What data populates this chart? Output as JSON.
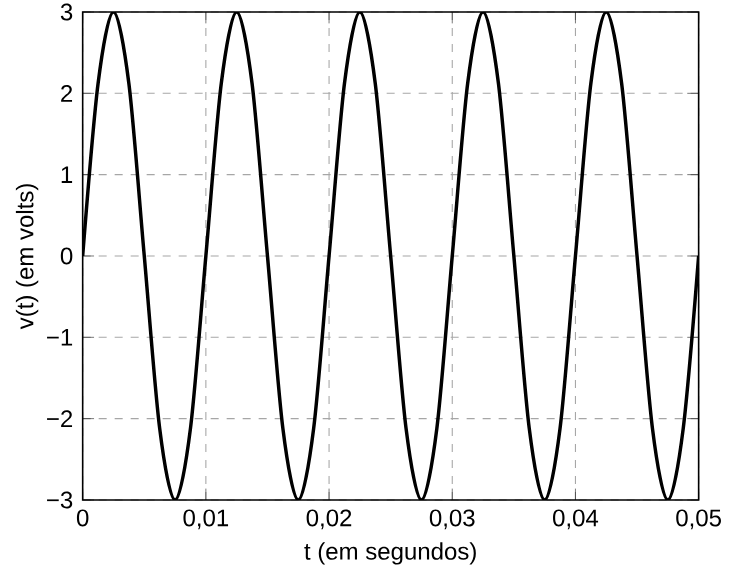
{
  "chart_data": {
    "type": "line",
    "xlabel": "t (em segundos)",
    "ylabel": "v(t) (em volts)",
    "x": [
      0,
      0.00125,
      0.0025,
      0.00375,
      0.005,
      0.00625,
      0.0075,
      0.00875,
      0.01,
      0.01125,
      0.0125,
      0.01375,
      0.015,
      0.01625,
      0.0175,
      0.01875,
      0.02,
      0.02125,
      0.0225,
      0.02375,
      0.025,
      0.02625,
      0.0275,
      0.02875,
      0.03,
      0.03125,
      0.0325,
      0.03375,
      0.035,
      0.03625,
      0.0375,
      0.03875,
      0.04,
      0.04125,
      0.0425,
      0.04375,
      0.045,
      0.04625,
      0.0475,
      0.04875,
      0.05
    ],
    "series": [
      {
        "color": "#000000",
        "values": [
          0,
          2.12,
          3,
          2.12,
          0,
          -2.12,
          -3,
          -2.12,
          0,
          2.12,
          3,
          2.12,
          0,
          -2.12,
          -3,
          -2.12,
          0,
          2.12,
          3,
          2.12,
          0,
          -2.12,
          -3,
          -2.12,
          0,
          2.12,
          3,
          2.12,
          0,
          -2.12,
          -3,
          -2.12,
          0,
          2.12,
          3,
          2.12,
          0,
          -2.12,
          -3,
          -2.12,
          0
        ]
      }
    ],
    "xlim": [
      0,
      0.05
    ],
    "xticks": [
      0,
      {
        "value": 0.01,
        "label": "0,01"
      },
      {
        "value": 0.02,
        "label": "0,02"
      },
      {
        "value": 0.03,
        "label": "0,03"
      },
      {
        "value": 0.04,
        "label": "0,04"
      },
      {
        "value": 0.05,
        "label": "0,05"
      }
    ],
    "ylim": [
      -3,
      3
    ],
    "yticks": [
      {
        "value": -3,
        "label": "−3"
      },
      {
        "value": -2,
        "label": "−2"
      },
      {
        "value": -1,
        "label": "−1"
      },
      0,
      1,
      2,
      3
    ],
    "grid": true,
    "line_style": "solid",
    "marker": "none"
  }
}
